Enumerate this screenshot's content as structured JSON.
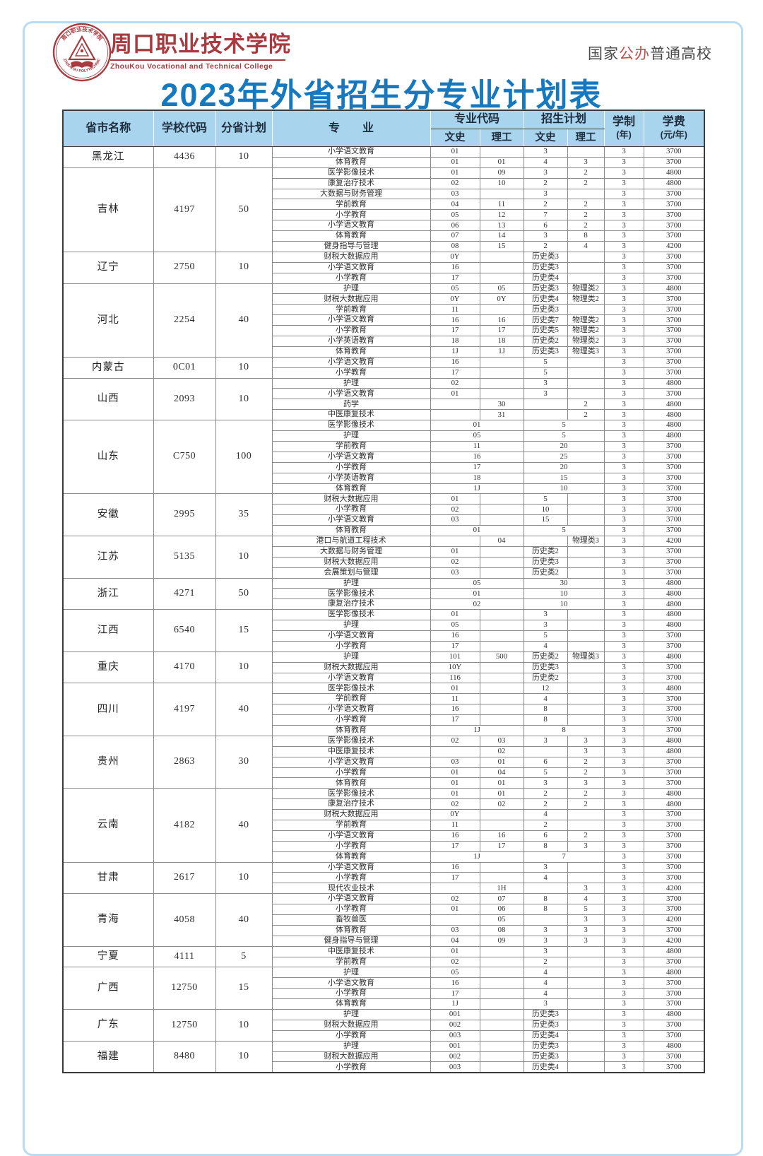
{
  "page": {
    "title": "2023年外省招生分专业计划表",
    "badge": {
      "prefix": "国家",
      "highlight": "公办",
      "suffix": "普通高校"
    },
    "logo": {
      "name_cn": "周口职业技术学院",
      "name_en": "ZhouKou Vocational and Technical College",
      "ring_top": "周口职业技术学院",
      "ring_bottom": "ZHOUKOU POLYTECHNIC"
    }
  },
  "colors": {
    "title_blue": "#1679c0",
    "header_bg": "#a9d4ee",
    "brand_red": "#a93b40",
    "badge_red": "#c0504d"
  },
  "table": {
    "headers": {
      "province": "省市名称",
      "school_code": "学校代码",
      "province_plan": "分省计划",
      "major": "专　　业",
      "major_code": "专业代码",
      "enroll_plan": "招生计划",
      "ws": "文史",
      "lg": "理工",
      "years_line1": "学制",
      "years_line2": "(年)",
      "fee_line1": "学费",
      "fee_line2": "(元/年)"
    },
    "provinces": [
      {
        "name": "黑龙江",
        "code": "4436",
        "plan": "10",
        "majors": [
          {
            "n": "小学语文教育",
            "cw": "01",
            "cl": "",
            "pw": "3",
            "pl": "",
            "y": "3",
            "f": "3700"
          },
          {
            "n": "体育教育",
            "cw": "01",
            "cl": "01",
            "pw": "4",
            "pl": "3",
            "y": "3",
            "f": "3700"
          }
        ]
      },
      {
        "name": "吉林",
        "code": "4197",
        "plan": "50",
        "majors": [
          {
            "n": "医学影像技术",
            "cw": "01",
            "cl": "09",
            "pw": "3",
            "pl": "2",
            "y": "3",
            "f": "4800"
          },
          {
            "n": "康复治疗技术",
            "cw": "02",
            "cl": "10",
            "pw": "2",
            "pl": "2",
            "y": "3",
            "f": "4800"
          },
          {
            "n": "大数据与财务管理",
            "cw": "03",
            "cl": "",
            "pw": "3",
            "pl": "",
            "y": "3",
            "f": "3700"
          },
          {
            "n": "学前教育",
            "cw": "04",
            "cl": "11",
            "pw": "2",
            "pl": "2",
            "y": "3",
            "f": "3700"
          },
          {
            "n": "小学教育",
            "cw": "05",
            "cl": "12",
            "pw": "7",
            "pl": "2",
            "y": "3",
            "f": "3700"
          },
          {
            "n": "小学语文教育",
            "cw": "06",
            "cl": "13",
            "pw": "6",
            "pl": "2",
            "y": "3",
            "f": "3700"
          },
          {
            "n": "体育教育",
            "cw": "07",
            "cl": "14",
            "pw": "3",
            "pl": "8",
            "y": "3",
            "f": "3700"
          },
          {
            "n": "健身指导与管理",
            "cw": "08",
            "cl": "15",
            "pw": "2",
            "pl": "4",
            "y": "3",
            "f": "4200"
          }
        ]
      },
      {
        "name": "辽宁",
        "code": "2750",
        "plan": "10",
        "majors": [
          {
            "n": "财税大数据应用",
            "cw": "0Y",
            "cl": "",
            "pw": "历史类3",
            "pl": "",
            "y": "3",
            "f": "3700"
          },
          {
            "n": "小学语文教育",
            "cw": "16",
            "cl": "",
            "pw": "历史类3",
            "pl": "",
            "y": "3",
            "f": "3700"
          },
          {
            "n": "小学教育",
            "cw": "17",
            "cl": "",
            "pw": "历史类4",
            "pl": "",
            "y": "3",
            "f": "3700"
          }
        ]
      },
      {
        "name": "河北",
        "code": "2254",
        "plan": "40",
        "majors": [
          {
            "n": "护理",
            "cw": "05",
            "cl": "05",
            "pw": "历史类3",
            "pl": "物理类2",
            "y": "3",
            "f": "4800"
          },
          {
            "n": "财税大数据应用",
            "cw": "0Y",
            "cl": "0Y",
            "pw": "历史类4",
            "pl": "物理类2",
            "y": "3",
            "f": "3700"
          },
          {
            "n": "学前教育",
            "cw": "11",
            "cl": "",
            "pw": "历史类3",
            "pl": "",
            "y": "3",
            "f": "3700"
          },
          {
            "n": "小学语文教育",
            "cw": "16",
            "cl": "16",
            "pw": "历史类7",
            "pl": "物理类2",
            "y": "3",
            "f": "3700"
          },
          {
            "n": "小学教育",
            "cw": "17",
            "cl": "17",
            "pw": "历史类5",
            "pl": "物理类2",
            "y": "3",
            "f": "3700"
          },
          {
            "n": "小学英语教育",
            "cw": "18",
            "cl": "18",
            "pw": "历史类2",
            "pl": "物理类2",
            "y": "3",
            "f": "3700"
          },
          {
            "n": "体育教育",
            "cw": "1J",
            "cl": "1J",
            "pw": "历史类3",
            "pl": "物理类3",
            "y": "3",
            "f": "3700"
          }
        ]
      },
      {
        "name": "内蒙古",
        "code": "0C01",
        "plan": "10",
        "majors": [
          {
            "n": "小学语文教育",
            "cw": "16",
            "cl": "",
            "pw": "5",
            "pl": "",
            "y": "3",
            "f": "3700"
          },
          {
            "n": "小学教育",
            "cw": "17",
            "cl": "",
            "pw": "5",
            "pl": "",
            "y": "3",
            "f": "3700"
          }
        ]
      },
      {
        "name": "山西",
        "code": "2093",
        "plan": "10",
        "majors": [
          {
            "n": "护理",
            "cw": "02",
            "cl": "",
            "pw": "3",
            "pl": "",
            "y": "3",
            "f": "4800"
          },
          {
            "n": "小学语文教育",
            "cw": "01",
            "cl": "",
            "pw": "3",
            "pl": "",
            "y": "3",
            "f": "3700"
          },
          {
            "n": "药学",
            "cw": "",
            "cl": "30",
            "pw": "",
            "pl": "2",
            "y": "3",
            "f": "4800"
          },
          {
            "n": "中医康复技术",
            "cw": "",
            "cl": "31",
            "pw": "",
            "pl": "2",
            "y": "3",
            "f": "4800"
          }
        ]
      },
      {
        "name": "山东",
        "code": "C750",
        "plan": "100",
        "majors": [
          {
            "n": "医学影像技术",
            "span": true,
            "c": "01",
            "p": "5",
            "y": "3",
            "f": "4800"
          },
          {
            "n": "护理",
            "span": true,
            "c": "05",
            "p": "5",
            "y": "3",
            "f": "4800"
          },
          {
            "n": "学前教育",
            "span": true,
            "c": "11",
            "p": "20",
            "y": "3",
            "f": "3700"
          },
          {
            "n": "小学语文教育",
            "span": true,
            "c": "16",
            "p": "25",
            "y": "3",
            "f": "3700"
          },
          {
            "n": "小学教育",
            "span": true,
            "c": "17",
            "p": "20",
            "y": "3",
            "f": "3700"
          },
          {
            "n": "小学英语教育",
            "span": true,
            "c": "18",
            "p": "15",
            "y": "3",
            "f": "3700"
          },
          {
            "n": "体育教育",
            "span": true,
            "c": "1J",
            "p": "10",
            "y": "3",
            "f": "3700"
          }
        ]
      },
      {
        "name": "安徽",
        "code": "2995",
        "plan": "35",
        "majors": [
          {
            "n": "财税大数据应用",
            "cw": "01",
            "cl": "",
            "pw": "5",
            "pl": "",
            "y": "3",
            "f": "3700"
          },
          {
            "n": "小学教育",
            "cw": "02",
            "cl": "",
            "pw": "10",
            "pl": "",
            "y": "3",
            "f": "3700"
          },
          {
            "n": "小学语文教育",
            "cw": "03",
            "cl": "",
            "pw": "15",
            "pl": "",
            "y": "3",
            "f": "3700"
          },
          {
            "n": "体育教育",
            "span": true,
            "c": "01",
            "p": "5",
            "y": "3",
            "f": "3700"
          }
        ]
      },
      {
        "name": "江苏",
        "code": "5135",
        "plan": "10",
        "majors": [
          {
            "n": "港口与航道工程技术",
            "cw": "",
            "cl": "04",
            "pw": "",
            "pl": "物理类3",
            "y": "3",
            "f": "4200"
          },
          {
            "n": "大数据与财务管理",
            "cw": "01",
            "cl": "",
            "pw": "历史类2",
            "pl": "",
            "y": "3",
            "f": "3700"
          },
          {
            "n": "财税大数据应用",
            "cw": "02",
            "cl": "",
            "pw": "历史类3",
            "pl": "",
            "y": "3",
            "f": "3700"
          },
          {
            "n": "会展策划与管理",
            "cw": "03",
            "cl": "",
            "pw": "历史类2",
            "pl": "",
            "y": "3",
            "f": "3700"
          }
        ]
      },
      {
        "name": "浙江",
        "code": "4271",
        "plan": "50",
        "majors": [
          {
            "n": "护理",
            "span": true,
            "c": "05",
            "p": "30",
            "y": "3",
            "f": "4800"
          },
          {
            "n": "医学影像技术",
            "span": true,
            "c": "01",
            "p": "10",
            "y": "3",
            "f": "4800"
          },
          {
            "n": "康复治疗技术",
            "span": true,
            "c": "02",
            "p": "10",
            "y": "3",
            "f": "4800"
          }
        ]
      },
      {
        "name": "江西",
        "code": "6540",
        "plan": "15",
        "majors": [
          {
            "n": "医学影像技术",
            "cw": "01",
            "cl": "",
            "pw": "3",
            "pl": "",
            "y": "3",
            "f": "4800"
          },
          {
            "n": "护理",
            "cw": "05",
            "cl": "",
            "pw": "3",
            "pl": "",
            "y": "3",
            "f": "4800"
          },
          {
            "n": "小学语文教育",
            "cw": "16",
            "cl": "",
            "pw": "5",
            "pl": "",
            "y": "3",
            "f": "3700"
          },
          {
            "n": "小学教育",
            "cw": "17",
            "cl": "",
            "pw": "4",
            "pl": "",
            "y": "3",
            "f": "3700"
          }
        ]
      },
      {
        "name": "重庆",
        "code": "4170",
        "plan": "10",
        "majors": [
          {
            "n": "护理",
            "cw": "101",
            "cl": "500",
            "pw": "历史类2",
            "pl": "物理类3",
            "y": "3",
            "f": "4800"
          },
          {
            "n": "财税大数据应用",
            "cw": "10Y",
            "cl": "",
            "pw": "历史类3",
            "pl": "",
            "y": "3",
            "f": "3700"
          },
          {
            "n": "小学语文教育",
            "cw": "116",
            "cl": "",
            "pw": "历史类2",
            "pl": "",
            "y": "3",
            "f": "3700"
          }
        ]
      },
      {
        "name": "四川",
        "code": "4197",
        "plan": "40",
        "majors": [
          {
            "n": "医学影像技术",
            "cw": "01",
            "cl": "",
            "pw": "12",
            "pl": "",
            "y": "3",
            "f": "4800"
          },
          {
            "n": "学前教育",
            "cw": "11",
            "cl": "",
            "pw": "4",
            "pl": "",
            "y": "3",
            "f": "3700"
          },
          {
            "n": "小学语文教育",
            "cw": "16",
            "cl": "",
            "pw": "8",
            "pl": "",
            "y": "3",
            "f": "3700"
          },
          {
            "n": "小学教育",
            "cw": "17",
            "cl": "",
            "pw": "8",
            "pl": "",
            "y": "3",
            "f": "3700"
          },
          {
            "n": "体育教育",
            "span": true,
            "c": "1J",
            "p": "8",
            "y": "3",
            "f": "3700"
          }
        ]
      },
      {
        "name": "贵州",
        "code": "2863",
        "plan": "30",
        "majors": [
          {
            "n": "医学影像技术",
            "cw": "02",
            "cl": "03",
            "pw": "3",
            "pl": "3",
            "y": "3",
            "f": "4800"
          },
          {
            "n": "中医康复技术",
            "cw": "",
            "cl": "02",
            "pw": "",
            "pl": "3",
            "y": "3",
            "f": "4800"
          },
          {
            "n": "小学语文教育",
            "cw": "03",
            "cl": "01",
            "pw": "6",
            "pl": "2",
            "y": "3",
            "f": "3700"
          },
          {
            "n": "小学教育",
            "cw": "01",
            "cl": "04",
            "pw": "5",
            "pl": "2",
            "y": "3",
            "f": "3700"
          },
          {
            "n": "体育教育",
            "cw": "01",
            "cl": "01",
            "pw": "3",
            "pl": "3",
            "y": "3",
            "f": "3700"
          }
        ]
      },
      {
        "name": "云南",
        "code": "4182",
        "plan": "40",
        "majors": [
          {
            "n": "医学影像技术",
            "cw": "01",
            "cl": "01",
            "pw": "2",
            "pl": "2",
            "y": "3",
            "f": "4800"
          },
          {
            "n": "康复治疗技术",
            "cw": "02",
            "cl": "02",
            "pw": "2",
            "pl": "2",
            "y": "3",
            "f": "4800"
          },
          {
            "n": "财税大数据应用",
            "cw": "0Y",
            "cl": "",
            "pw": "4",
            "pl": "",
            "y": "3",
            "f": "3700"
          },
          {
            "n": "学前教育",
            "cw": "11",
            "cl": "",
            "pw": "2",
            "pl": "",
            "y": "3",
            "f": "3700"
          },
          {
            "n": "小学语文教育",
            "cw": "16",
            "cl": "16",
            "pw": "6",
            "pl": "2",
            "y": "3",
            "f": "3700"
          },
          {
            "n": "小学教育",
            "cw": "17",
            "cl": "17",
            "pw": "8",
            "pl": "3",
            "y": "3",
            "f": "3700"
          },
          {
            "n": "体育教育",
            "span": true,
            "c": "1J",
            "p": "7",
            "y": "3",
            "f": "3700"
          }
        ]
      },
      {
        "name": "甘肃",
        "code": "2617",
        "plan": "10",
        "majors": [
          {
            "n": "小学语文教育",
            "cw": "16",
            "cl": "",
            "pw": "3",
            "pl": "",
            "y": "3",
            "f": "3700"
          },
          {
            "n": "小学教育",
            "cw": "17",
            "cl": "",
            "pw": "4",
            "pl": "",
            "y": "3",
            "f": "3700"
          },
          {
            "n": "现代农业技术",
            "cw": "",
            "cl": "1H",
            "pw": "",
            "pl": "3",
            "y": "3",
            "f": "4200"
          }
        ]
      },
      {
        "name": "青海",
        "code": "4058",
        "plan": "40",
        "majors": [
          {
            "n": "小学语文教育",
            "cw": "02",
            "cl": "07",
            "pw": "8",
            "pl": "4",
            "y": "3",
            "f": "3700"
          },
          {
            "n": "小学教育",
            "cw": "01",
            "cl": "06",
            "pw": "8",
            "pl": "5",
            "y": "3",
            "f": "3700"
          },
          {
            "n": "畜牧兽医",
            "cw": "",
            "cl": "05",
            "pw": "",
            "pl": "3",
            "y": "3",
            "f": "4200"
          },
          {
            "n": "体育教育",
            "cw": "03",
            "cl": "08",
            "pw": "3",
            "pl": "3",
            "y": "3",
            "f": "3700"
          },
          {
            "n": "健身指导与管理",
            "cw": "04",
            "cl": "09",
            "pw": "3",
            "pl": "3",
            "y": "3",
            "f": "4200"
          }
        ]
      },
      {
        "name": "宁夏",
        "code": "4111",
        "plan": "5",
        "majors": [
          {
            "n": "中医康复技术",
            "cw": "01",
            "cl": "",
            "pw": "3",
            "pl": "",
            "y": "3",
            "f": "4800"
          },
          {
            "n": "学前教育",
            "cw": "02",
            "cl": "",
            "pw": "2",
            "pl": "",
            "y": "3",
            "f": "3700"
          }
        ]
      },
      {
        "name": "广西",
        "code": "12750",
        "plan": "15",
        "majors": [
          {
            "n": "护理",
            "cw": "05",
            "cl": "",
            "pw": "4",
            "pl": "",
            "y": "3",
            "f": "4800"
          },
          {
            "n": "小学语文教育",
            "cw": "16",
            "cl": "",
            "pw": "4",
            "pl": "",
            "y": "3",
            "f": "3700"
          },
          {
            "n": "小学教育",
            "cw": "17",
            "cl": "",
            "pw": "4",
            "pl": "",
            "y": "3",
            "f": "3700"
          },
          {
            "n": "体育教育",
            "cw": "1J",
            "cl": "",
            "pw": "3",
            "pl": "",
            "y": "3",
            "f": "3700"
          }
        ]
      },
      {
        "name": "广东",
        "code": "12750",
        "plan": "10",
        "majors": [
          {
            "n": "护理",
            "cw": "001",
            "cl": "",
            "pw": "历史类3",
            "pl": "",
            "y": "3",
            "f": "4800"
          },
          {
            "n": "财税大数据应用",
            "cw": "002",
            "cl": "",
            "pw": "历史类3",
            "pl": "",
            "y": "3",
            "f": "3700"
          },
          {
            "n": "小学教育",
            "cw": "003",
            "cl": "",
            "pw": "历史类4",
            "pl": "",
            "y": "3",
            "f": "3700"
          }
        ]
      },
      {
        "name": "福建",
        "code": "8480",
        "plan": "10",
        "majors": [
          {
            "n": "护理",
            "cw": "001",
            "cl": "",
            "pw": "历史类3",
            "pl": "",
            "y": "3",
            "f": "4800"
          },
          {
            "n": "财税大数据应用",
            "cw": "002",
            "cl": "",
            "pw": "历史类3",
            "pl": "",
            "y": "3",
            "f": "3700"
          },
          {
            "n": "小学教育",
            "cw": "003",
            "cl": "",
            "pw": "历史类4",
            "pl": "",
            "y": "3",
            "f": "3700"
          }
        ]
      }
    ]
  }
}
